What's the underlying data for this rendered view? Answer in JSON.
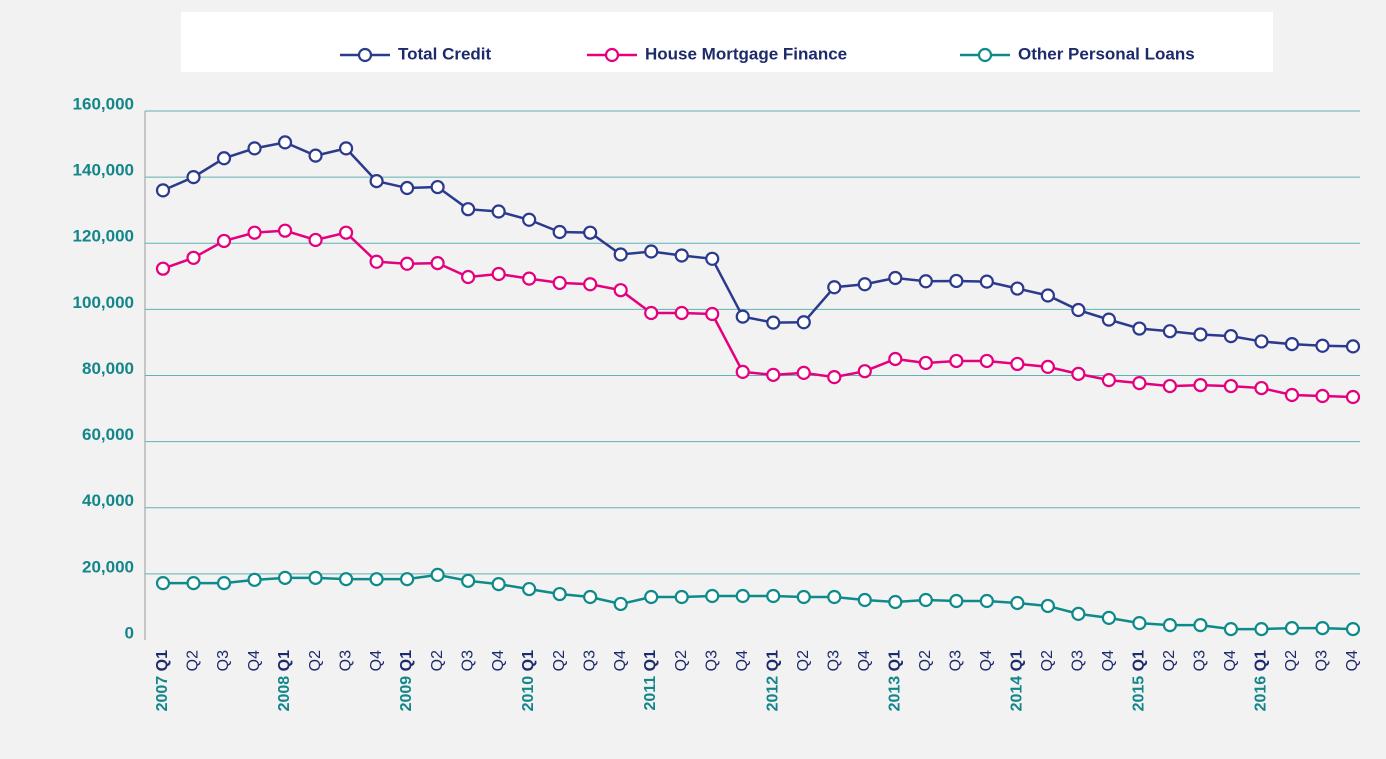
{
  "chart_data": {
    "type": "line",
    "categories": [
      "2007 Q1",
      "Q2",
      "Q3",
      "Q4",
      "2008 Q1",
      "Q2",
      "Q3",
      "Q4",
      "2009 Q1",
      "Q2",
      "Q3",
      "Q4",
      "2010 Q1",
      "Q2",
      "Q3",
      "Q4",
      "2011 Q1",
      "Q2",
      "Q3",
      "Q4",
      "2012 Q1",
      "Q2",
      "Q3",
      "Q4",
      "2013 Q1",
      "Q2",
      "Q3",
      "Q4",
      "2014 Q1",
      "Q2",
      "Q3",
      "Q4",
      "2015 Q1",
      "Q2",
      "Q3",
      "Q4",
      "2016 Q1",
      "Q2",
      "Q3",
      "Q4"
    ],
    "series": [
      {
        "name": "Total Credit",
        "color": "#2b3a8c",
        "values": [
          136000,
          140000,
          145700,
          148700,
          150500,
          146500,
          148700,
          138800,
          136700,
          137000,
          130300,
          129600,
          127100,
          123400,
          123200,
          116600,
          117500,
          116300,
          115300,
          97800,
          96000,
          96100,
          106700,
          107600,
          109500,
          108500,
          108600,
          108400,
          106300,
          104200,
          99800,
          96900,
          94200,
          93400,
          92400,
          91900,
          90300,
          89500,
          89000,
          88800
        ]
      },
      {
        "name": "House Mortgage Finance",
        "color": "#e5007e",
        "values": [
          112300,
          115600,
          120700,
          123200,
          123800,
          121000,
          123200,
          114400,
          113800,
          114000,
          109800,
          110700,
          109300,
          108000,
          107600,
          105800,
          98900,
          98900,
          98600,
          81100,
          80200,
          80800,
          79500,
          81300,
          85000,
          83800,
          84400,
          84400,
          83500,
          82600,
          80500,
          78600,
          77700,
          76800,
          77100,
          76800,
          76200,
          74100,
          73800,
          73500
        ]
      },
      {
        "name": "Other Personal Loans",
        "color": "#0f8a8a",
        "values": [
          17200,
          17200,
          17200,
          18200,
          18800,
          18800,
          18400,
          18400,
          18400,
          19700,
          17900,
          16900,
          15400,
          13900,
          13000,
          10900,
          13000,
          13000,
          13300,
          13300,
          13300,
          13000,
          13000,
          12100,
          11500,
          12100,
          11800,
          11800,
          11200,
          10300,
          7900,
          6700,
          5100,
          4500,
          4500,
          3300,
          3300,
          3600,
          3600,
          3300
        ]
      }
    ],
    "ylim": [
      0,
      160000
    ],
    "yticks": [
      0,
      {
        "value": 20000,
        "label": "20,000"
      },
      {
        "value": 40000,
        "label": "40,000"
      },
      {
        "value": 60000,
        "label": "60,000"
      },
      {
        "value": 80000,
        "label": "80,000"
      },
      {
        "value": 100000,
        "label": "100,000"
      },
      {
        "value": 120000,
        "label": "120,000"
      },
      {
        "value": 140000,
        "label": "140,000"
      },
      {
        "value": 160000,
        "label": "160,000"
      }
    ],
    "grid": true,
    "legend": "top"
  }
}
